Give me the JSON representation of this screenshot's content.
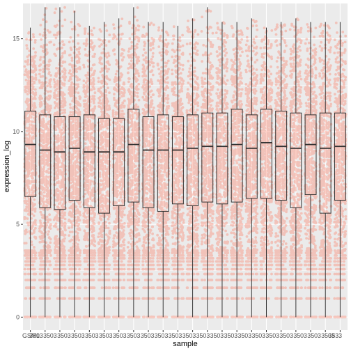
{
  "chart_data": {
    "type": "boxplot",
    "title": "",
    "xlabel": "sample",
    "ylabel": "expression_log",
    "ylim": [
      -0.7,
      16.9
    ],
    "y_ticks": [
      0,
      5,
      10,
      15
    ],
    "x_tick_labels_visible": [
      "GSM1",
      "3503",
      "3503",
      "3503",
      "3503",
      "3503",
      "3503",
      "3503",
      "3503",
      "3503",
      "3503",
      "3503",
      "3503",
      "3503",
      "3503",
      "3503",
      "3503",
      "3503",
      "3503",
      "3503",
      "3503",
      "3503",
      "3503",
      "3533"
    ],
    "series_overlay": "jittered points (alpha)",
    "grid": true,
    "legend": "none",
    "colors": {
      "panel_bg": "#ebebeb",
      "grid": "#ffffff",
      "points": "#ff6347",
      "box_line": "#333333"
    },
    "boxes": [
      {
        "min": 0,
        "q1": 6.5,
        "median": 9.3,
        "q3": 11.1,
        "max": 15.6
      },
      {
        "min": 0,
        "q1": 5.9,
        "median": 9.0,
        "q3": 10.9,
        "max": 16.7
      },
      {
        "min": 0,
        "q1": 5.8,
        "median": 8.9,
        "q3": 10.8,
        "max": 16.7
      },
      {
        "min": 0,
        "q1": 6.3,
        "median": 9.1,
        "q3": 10.8,
        "max": 16.5
      },
      {
        "min": 0,
        "q1": 5.9,
        "median": 8.9,
        "q3": 10.9,
        "max": 15.7
      },
      {
        "min": 0,
        "q1": 5.6,
        "median": 8.9,
        "q3": 10.7,
        "max": 15.9
      },
      {
        "min": 0,
        "q1": 6.0,
        "median": 8.9,
        "q3": 10.7,
        "max": 16.1
      },
      {
        "min": 0,
        "q1": 6.2,
        "median": 9.3,
        "q3": 11.2,
        "max": 16.7
      },
      {
        "min": 0,
        "q1": 5.9,
        "median": 9.0,
        "q3": 10.8,
        "max": 15.9
      },
      {
        "min": 0,
        "q1": 5.7,
        "median": 9.0,
        "q3": 10.9,
        "max": 15.9
      },
      {
        "min": 0,
        "q1": 6.1,
        "median": 9.0,
        "q3": 10.8,
        "max": 15.7
      },
      {
        "min": 0,
        "q1": 6.0,
        "median": 9.1,
        "q3": 10.9,
        "max": 16.1
      },
      {
        "min": 0,
        "q1": 6.2,
        "median": 9.2,
        "q3": 11.0,
        "max": 16.7
      },
      {
        "min": 0,
        "q1": 6.1,
        "median": 9.2,
        "q3": 11.0,
        "max": 15.9
      },
      {
        "min": 0,
        "q1": 6.2,
        "median": 9.3,
        "q3": 11.2,
        "max": 15.9
      },
      {
        "min": 0,
        "q1": 6.4,
        "median": 9.1,
        "q3": 10.9,
        "max": 16.1
      },
      {
        "min": 0,
        "q1": 6.4,
        "median": 9.4,
        "q3": 11.2,
        "max": 15.6
      },
      {
        "min": 0,
        "q1": 6.3,
        "median": 9.2,
        "q3": 11.1,
        "max": 15.9
      },
      {
        "min": 0,
        "q1": 5.9,
        "median": 9.1,
        "q3": 11.0,
        "max": 16.1
      },
      {
        "min": 0,
        "q1": 6.6,
        "median": 9.3,
        "q3": 10.9,
        "max": 15.9
      },
      {
        "min": 0,
        "q1": 5.6,
        "median": 9.1,
        "q3": 11.0,
        "max": 15.9
      },
      {
        "min": 0,
        "q1": 6.3,
        "median": 9.2,
        "q3": 11.0,
        "max": 15.9
      }
    ],
    "discrete_low_values": [
      0,
      1,
      1.58,
      2,
      2.32,
      2.58,
      2.81,
      3,
      3.17,
      3.32,
      3.46,
      3.58
    ]
  }
}
